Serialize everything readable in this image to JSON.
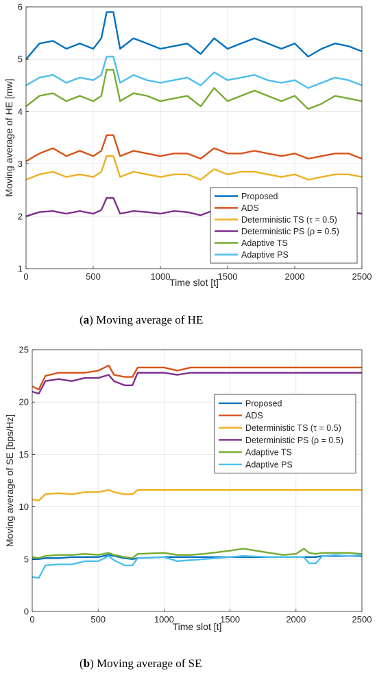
{
  "figure": {
    "caption_a": {
      "letter": "a",
      "text": " Moving average of HE"
    },
    "caption_b": {
      "letter": "b",
      "text": " Moving average of SE"
    }
  },
  "chart_data": [
    {
      "type": "line",
      "xlabel": "Time slot [t]",
      "ylabel": "Moving average of HE [mw]",
      "xlim": [
        0,
        2500
      ],
      "ylim": [
        1,
        6
      ],
      "xticks": [
        0,
        500,
        1000,
        1500,
        2000,
        2500
      ],
      "yticks": [
        1,
        2,
        3,
        4,
        5,
        6
      ],
      "grid": true,
      "legend_position": "bottom-right",
      "x": [
        0,
        100,
        200,
        300,
        400,
        500,
        560,
        600,
        650,
        700,
        800,
        900,
        1000,
        1100,
        1200,
        1300,
        1400,
        1500,
        1600,
        1700,
        1800,
        1900,
        2000,
        2100,
        2200,
        2300,
        2400,
        2500
      ],
      "series": [
        {
          "name": "Proposed",
          "color": "#0072BD",
          "values": [
            5.0,
            5.3,
            5.35,
            5.2,
            5.3,
            5.2,
            5.4,
            5.9,
            5.9,
            5.2,
            5.4,
            5.3,
            5.2,
            5.25,
            5.3,
            5.1,
            5.4,
            5.2,
            5.3,
            5.4,
            5.3,
            5.2,
            5.3,
            5.05,
            5.2,
            5.3,
            5.25,
            5.15
          ]
        },
        {
          "name": "ADS",
          "color": "#D95319",
          "values": [
            3.05,
            3.2,
            3.3,
            3.15,
            3.25,
            3.15,
            3.25,
            3.55,
            3.55,
            3.15,
            3.25,
            3.2,
            3.15,
            3.2,
            3.2,
            3.1,
            3.3,
            3.2,
            3.2,
            3.25,
            3.2,
            3.15,
            3.2,
            3.1,
            3.15,
            3.2,
            3.2,
            3.1
          ]
        },
        {
          "name": "Deterministic TS (τ = 0.5)",
          "color": "#EDB120",
          "values": [
            2.7,
            2.8,
            2.85,
            2.75,
            2.8,
            2.75,
            2.85,
            3.15,
            3.15,
            2.75,
            2.85,
            2.8,
            2.75,
            2.8,
            2.8,
            2.7,
            2.9,
            2.8,
            2.85,
            2.85,
            2.8,
            2.75,
            2.8,
            2.7,
            2.75,
            2.8,
            2.8,
            2.75
          ]
        },
        {
          "name": "Deterministic PS (ρ = 0.5)",
          "color": "#7E2F8E",
          "values": [
            2.0,
            2.08,
            2.1,
            2.05,
            2.1,
            2.05,
            2.12,
            2.35,
            2.35,
            2.05,
            2.1,
            2.08,
            2.05,
            2.1,
            2.08,
            2.02,
            2.12,
            2.08,
            2.1,
            2.1,
            2.08,
            2.05,
            2.08,
            2.02,
            2.05,
            2.1,
            2.08,
            2.05
          ]
        },
        {
          "name": "Adaptive TS",
          "color": "#77AC30",
          "values": [
            4.1,
            4.3,
            4.35,
            4.2,
            4.3,
            4.2,
            4.3,
            4.8,
            4.8,
            4.2,
            4.35,
            4.3,
            4.2,
            4.25,
            4.3,
            4.1,
            4.45,
            4.2,
            4.3,
            4.4,
            4.3,
            4.2,
            4.3,
            4.05,
            4.15,
            4.3,
            4.25,
            4.2
          ]
        },
        {
          "name": "Adaptive PS",
          "color": "#4DBEEE",
          "values": [
            4.5,
            4.65,
            4.7,
            4.55,
            4.65,
            4.6,
            4.7,
            5.05,
            5.05,
            4.55,
            4.7,
            4.6,
            4.55,
            4.6,
            4.65,
            4.5,
            4.75,
            4.6,
            4.65,
            4.7,
            4.6,
            4.55,
            4.6,
            4.45,
            4.55,
            4.65,
            4.6,
            4.5
          ]
        }
      ]
    },
    {
      "type": "line",
      "xlabel": "Time slot [t]",
      "ylabel": "Moving average of SE [bps/Hz]",
      "xlim": [
        0,
        2500
      ],
      "ylim": [
        0,
        25
      ],
      "xticks": [
        0,
        500,
        1000,
        1500,
        2000,
        2500
      ],
      "yticks": [
        0,
        5,
        10,
        15,
        20,
        25
      ],
      "grid": true,
      "legend_position": "right",
      "x": [
        0,
        50,
        100,
        200,
        300,
        400,
        500,
        580,
        620,
        700,
        760,
        800,
        1000,
        1100,
        1200,
        1300,
        1500,
        1600,
        1800,
        1900,
        2000,
        2060,
        2100,
        2150,
        2200,
        2300,
        2400,
        2500
      ],
      "series": [
        {
          "name": "Proposed",
          "color": "#0072BD",
          "values": [
            5.0,
            5.0,
            5.1,
            5.1,
            5.2,
            5.2,
            5.2,
            5.4,
            5.3,
            5.1,
            5.0,
            5.1,
            5.2,
            5.2,
            5.2,
            5.2,
            5.2,
            5.2,
            5.2,
            5.2,
            5.2,
            5.2,
            5.2,
            5.2,
            5.3,
            5.3,
            5.3,
            5.3
          ]
        },
        {
          "name": "ADS",
          "color": "#D95319",
          "values": [
            21.5,
            21.2,
            22.5,
            22.8,
            22.8,
            22.8,
            23.0,
            23.5,
            22.6,
            22.4,
            22.4,
            23.3,
            23.3,
            23.0,
            23.3,
            23.3,
            23.3,
            23.3,
            23.3,
            23.3,
            23.3,
            23.3,
            23.3,
            23.3,
            23.3,
            23.3,
            23.3,
            23.3
          ]
        },
        {
          "name": "Deterministic TS (τ = 0.5)",
          "color": "#EDB120",
          "values": [
            10.7,
            10.6,
            11.2,
            11.3,
            11.2,
            11.4,
            11.4,
            11.6,
            11.4,
            11.2,
            11.2,
            11.6,
            11.6,
            11.6,
            11.6,
            11.6,
            11.6,
            11.6,
            11.6,
            11.6,
            11.6,
            11.6,
            11.6,
            11.6,
            11.6,
            11.6,
            11.6,
            11.6
          ]
        },
        {
          "name": "Deterministic PS (ρ = 0.5)",
          "color": "#7E2F8E",
          "values": [
            21.0,
            20.8,
            22.0,
            22.2,
            22.0,
            22.3,
            22.3,
            22.6,
            22.0,
            21.6,
            21.6,
            22.8,
            22.8,
            22.6,
            22.8,
            22.8,
            22.8,
            22.8,
            22.8,
            22.8,
            22.8,
            22.8,
            22.8,
            22.8,
            22.8,
            22.8,
            22.8,
            22.8
          ]
        },
        {
          "name": "Adaptive TS",
          "color": "#77AC30",
          "values": [
            5.2,
            5.1,
            5.3,
            5.4,
            5.4,
            5.5,
            5.4,
            5.6,
            5.4,
            5.2,
            5.1,
            5.5,
            5.6,
            5.4,
            5.4,
            5.5,
            5.8,
            6.0,
            5.6,
            5.4,
            5.5,
            6.0,
            5.6,
            5.5,
            5.6,
            5.6,
            5.6,
            5.5
          ]
        },
        {
          "name": "Adaptive PS",
          "color": "#4DBEEE",
          "values": [
            3.3,
            3.2,
            4.4,
            4.5,
            4.5,
            4.8,
            4.8,
            5.3,
            4.9,
            4.4,
            4.4,
            5.1,
            5.2,
            4.8,
            4.9,
            5.0,
            5.2,
            5.3,
            5.2,
            5.2,
            5.2,
            5.2,
            4.6,
            4.6,
            5.3,
            5.4,
            5.3,
            5.4
          ]
        }
      ]
    }
  ]
}
